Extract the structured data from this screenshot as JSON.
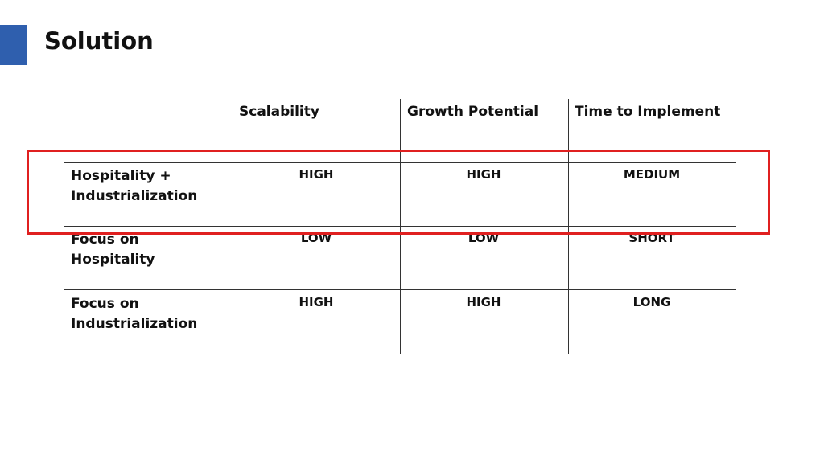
{
  "header": {
    "title": "Solution"
  },
  "table": {
    "columns": [
      "Scalability",
      "Growth Potential",
      "Time to Implement"
    ],
    "rows": [
      [
        "Hospitality + Industrialization",
        "HIGH",
        "HIGH",
        "MEDIUM"
      ],
      [
        "Focus on Hospitality",
        "LOW",
        "LOW",
        "SHORT"
      ],
      [
        "Focus on Industrialization",
        "HIGH",
        "HIGH",
        "LONG"
      ]
    ]
  }
}
